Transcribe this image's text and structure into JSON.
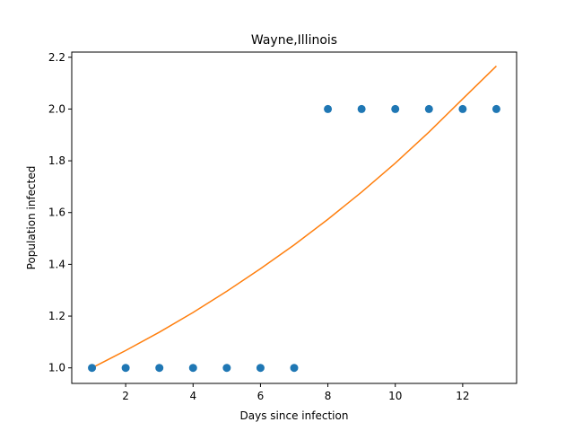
{
  "chart_data": {
    "type": "scatter",
    "title": "Wayne,Illinois",
    "xlabel": "Days since infection",
    "ylabel": "Population infected",
    "xlim": [
      0.4,
      13.6
    ],
    "ylim": [
      0.94,
      2.22
    ],
    "xticks": [
      2,
      4,
      6,
      8,
      10,
      12
    ],
    "xtick_labels": [
      "2",
      "4",
      "6",
      "8",
      "10",
      "12"
    ],
    "yticks": [
      1.0,
      1.2,
      1.4,
      1.6,
      1.8,
      2.0,
      2.2
    ],
    "ytick_labels": [
      "1.0",
      "1.2",
      "1.4",
      "1.6",
      "1.8",
      "2.0",
      "2.2"
    ],
    "grid": false,
    "series": [
      {
        "kind": "scatter",
        "color": "#1f77b4",
        "x": [
          1,
          2,
          3,
          4,
          5,
          6,
          7,
          8,
          9,
          10,
          11,
          12,
          13
        ],
        "y": [
          1,
          1,
          1,
          1,
          1,
          1,
          1,
          2,
          2,
          2,
          2,
          2,
          2
        ]
      },
      {
        "kind": "line",
        "color": "#ff7f0e",
        "x": [
          1,
          2,
          3,
          4,
          5,
          6,
          7,
          8,
          9,
          10,
          11,
          12,
          13
        ],
        "y": [
          1.0,
          1.067,
          1.138,
          1.214,
          1.296,
          1.383,
          1.475,
          1.574,
          1.679,
          1.791,
          1.911,
          2.039,
          2.166
        ]
      }
    ]
  }
}
